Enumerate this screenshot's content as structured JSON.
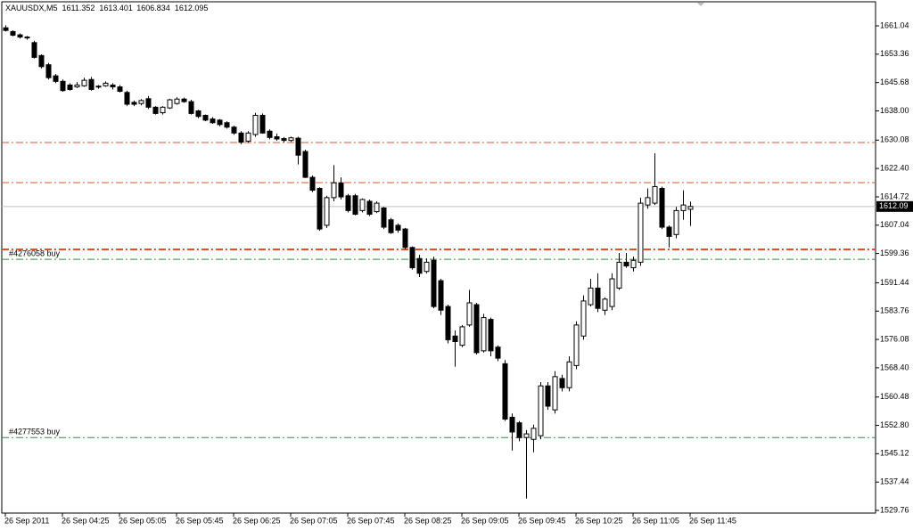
{
  "chart_data": {
    "type": "candlestick",
    "title": "XAUUSDX,M5",
    "header_values": [
      1611.352,
      1613.401,
      1606.834,
      1612.095
    ],
    "categories": [
      "26 Sep 2011",
      null,
      null,
      null,
      null,
      null,
      null,
      null,
      "26 Sep 04:25",
      null,
      null,
      null,
      null,
      null,
      null,
      null,
      "26 Sep 05:05",
      null,
      null,
      null,
      null,
      null,
      null,
      null,
      "26 Sep 05:45",
      null,
      null,
      null,
      null,
      null,
      null,
      null,
      "26 Sep 06:25",
      null,
      null,
      null,
      null,
      null,
      null,
      null,
      "26 Sep 07:05",
      null,
      null,
      null,
      null,
      null,
      null,
      null,
      "26 Sep 07:45",
      null,
      null,
      null,
      null,
      null,
      null,
      null,
      "26 Sep 08:25",
      null,
      null,
      null,
      null,
      null,
      null,
      null,
      "26 Sep 09:05",
      null,
      null,
      null,
      null,
      null,
      null,
      null,
      "26 Sep 09:45",
      null,
      null,
      null,
      null,
      null,
      null,
      null,
      "26 Sep 10:25",
      null,
      null,
      null,
      null,
      null,
      null,
      null,
      "26 Sep 11:05",
      null,
      null,
      null,
      null,
      null,
      null,
      null,
      "26 Sep 11:45"
    ],
    "open": [
      1660.5,
      1659.5,
      1658.6,
      1658,
      1656.5,
      1653,
      1650.5,
      1647.5,
      1646,
      1645,
      1644.5,
      1644.8,
      1646.5,
      1644.7,
      1644.8,
      1645,
      1644.5,
      1643,
      1640.3,
      1640,
      1641.3,
      1639,
      1637.5,
      1638.8,
      1640,
      1641.2,
      1640.5,
      1638,
      1636.8,
      1635.8,
      1635.5,
      1634.8,
      1633.6,
      1632,
      1629.8,
      1631.6,
      1636.8,
      1632.5,
      1631,
      1630.5,
      1630,
      1630.6,
      1627,
      1620,
      1617,
      1607,
      1614.5,
      1618.5,
      1615,
      1615,
      1611,
      1613.5,
      1610.7,
      1611.7,
      1608.5,
      1607,
      1606,
      1601,
      1598,
      1594.5,
      1597.5,
      1592,
      1585,
      1577,
      1574.5,
      1580,
      1585.5,
      1573,
      1581.5,
      1574,
      1569.5,
      1555,
      1553.5,
      1549.5,
      1549,
      1550,
      1563.5,
      1557,
      1565.5,
      1563,
      1569,
      1577,
      1585.5,
      1590,
      1584,
      1585,
      1590,
      1597,
      1595.5,
      1597,
      1612.5,
      1613,
      1617,
      1606.5,
      1604.5,
      1611,
      1611.352
    ],
    "high": [
      1661.2,
      1659.8,
      1659,
      1658.3,
      1657,
      1653.3,
      1651,
      1648,
      1646.5,
      1645.5,
      1645.8,
      1647,
      1647.2,
      1645,
      1646,
      1645.5,
      1645,
      1643.5,
      1640.8,
      1641.2,
      1642,
      1639.3,
      1639.3,
      1641.3,
      1641.7,
      1641.6,
      1641,
      1638.3,
      1637,
      1636.3,
      1635.8,
      1635.2,
      1634,
      1632.5,
      1632.5,
      1637.5,
      1637.3,
      1633,
      1631.8,
      1630.9,
      1631,
      1631,
      1627.5,
      1620.5,
      1617.3,
      1615,
      1623.3,
      1620,
      1615.5,
      1615.5,
      1614.3,
      1614,
      1613.5,
      1612,
      1609,
      1607.5,
      1606.3,
      1601.3,
      1599,
      1598,
      1598.5,
      1592.5,
      1585.5,
      1578.5,
      1580,
      1589.5,
      1586,
      1583,
      1582,
      1574.5,
      1570.5,
      1556,
      1554,
      1551.5,
      1553,
      1564.5,
      1564.5,
      1567.5,
      1566.5,
      1571.5,
      1581,
      1588,
      1592.5,
      1594,
      1587.5,
      1594,
      1599.5,
      1599.5,
      1598.5,
      1614.5,
      1617,
      1626.5,
      1617.5,
      1607,
      1612,
      1616.5,
      1613.401
    ],
    "low": [
      1659.5,
      1658.2,
      1657.6,
      1657.3,
      1652.2,
      1649.5,
      1646.5,
      1645.5,
      1643.2,
      1643.5,
      1644.2,
      1644.5,
      1643.5,
      1644,
      1644.5,
      1643.8,
      1643,
      1639.3,
      1639.3,
      1639.5,
      1638.5,
      1637,
      1637,
      1638.5,
      1639.7,
      1640.2,
      1637,
      1636,
      1635.2,
      1634.5,
      1633.8,
      1633.2,
      1631.5,
      1629,
      1629.3,
      1631,
      1631.8,
      1630.3,
      1629.9,
      1629.5,
      1629.6,
      1623.5,
      1619.8,
      1616,
      1605.5,
      1606.3,
      1613.5,
      1614,
      1610.5,
      1609.7,
      1610.5,
      1609.5,
      1610.3,
      1606,
      1604.7,
      1605,
      1600.5,
      1595,
      1593,
      1594,
      1584.5,
      1582.7,
      1575,
      1568.7,
      1574,
      1579.5,
      1572,
      1572.5,
      1571.5,
      1570.2,
      1554,
      1546,
      1548.5,
      1533,
      1545.5,
      1549,
      1557,
      1556,
      1562,
      1562,
      1568,
      1576,
      1585,
      1583.5,
      1582.7,
      1584,
      1589.5,
      1595.5,
      1594.5,
      1596,
      1611.5,
      1612.5,
      1606,
      1601,
      1603.5,
      1608.5,
      1606.834
    ],
    "close": [
      1659.8,
      1658.5,
      1658,
      1657.8,
      1652.5,
      1650,
      1647,
      1646,
      1643.5,
      1643.8,
      1645,
      1646.3,
      1643.8,
      1644.5,
      1645.5,
      1644.5,
      1643.3,
      1639.8,
      1639.8,
      1640.8,
      1639,
      1637.3,
      1639,
      1641,
      1641.2,
      1640.5,
      1637.3,
      1636.5,
      1635.5,
      1634.8,
      1634.3,
      1633.6,
      1632,
      1629.5,
      1632,
      1636.8,
      1632,
      1630.8,
      1630.4,
      1630,
      1630.7,
      1626,
      1620,
      1616.5,
      1606,
      1614.5,
      1618.5,
      1614.7,
      1611,
      1610,
      1614,
      1610,
      1613,
      1606.5,
      1605,
      1605.7,
      1601,
      1595.5,
      1594,
      1597,
      1585,
      1584,
      1576,
      1575.5,
      1579.5,
      1586,
      1572.5,
      1582,
      1573,
      1571,
      1554.5,
      1551,
      1549.5,
      1550.5,
      1552,
      1563.5,
      1558,
      1566,
      1563,
      1570,
      1580,
      1586.5,
      1590,
      1584.5,
      1587,
      1592.5,
      1597,
      1596,
      1597.5,
      1613,
      1614.5,
      1617.5,
      1606.5,
      1604,
      1611,
      1612.5,
      1612.095
    ],
    "up_color": "#ffffff",
    "down_color": "#000000",
    "outline_color": "#000000",
    "ylim": [
      1529.04,
      1667.56
    ],
    "yticks": [
      1661.04,
      1653.36,
      1645.68,
      {
        "value": 1638,
        "label": "1638.00"
      },
      1630.08,
      {
        "value": 1622.4,
        "label": "1622.40"
      },
      1614.72,
      1607.04,
      1599.36,
      1591.44,
      1583.76,
      1576.08,
      {
        "value": 1568.4,
        "label": "1568.40"
      },
      1560.48,
      {
        "value": 1552.8,
        "label": "1552.80"
      },
      1545.12,
      1537.44,
      1529.76
    ],
    "levels": [
      {
        "value": 1629.43,
        "color": "#e0502a"
      },
      {
        "value": 1618.57,
        "color": "#e0502a"
      },
      {
        "value": 1600.47,
        "color": "#e0502a"
      },
      {
        "value": 1597.8,
        "color": "#2e8b3e",
        "label": "#4276058 buy"
      },
      {
        "value": 1549.5,
        "color": "#2e8b3e",
        "label": "#4277553 buy"
      }
    ],
    "last_price": {
      "value": 1612.095,
      "label": "1612.09"
    },
    "grid": false
  }
}
